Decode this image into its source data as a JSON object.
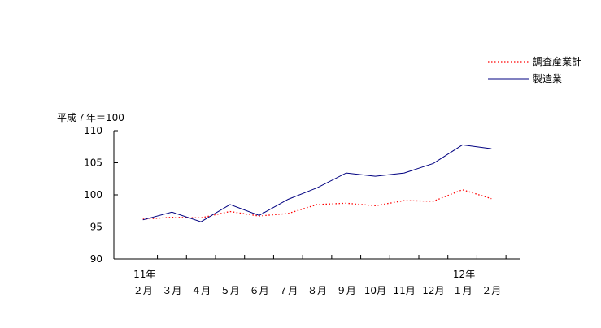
{
  "chart_data": {
    "type": "line",
    "unit_label": "平成７年＝100",
    "ylim": [
      90,
      110
    ],
    "yticks": [
      90,
      95,
      100,
      105,
      110
    ],
    "x_year_labels": [
      {
        "index": 0,
        "label": "11年"
      },
      {
        "index": 11,
        "label": "12年"
      }
    ],
    "categories": [
      "２月",
      "３月",
      "４月",
      "５月",
      "６月",
      "７月",
      "８月",
      "９月",
      "10月",
      "11月",
      "12月",
      "１月",
      "２月"
    ],
    "legend_position": "top-right",
    "grid": false,
    "series": [
      {
        "name": "調査産業計",
        "style": "dotted",
        "color": "#ff0000",
        "values": [
          96.2,
          96.5,
          96.4,
          97.4,
          96.7,
          97.1,
          98.5,
          98.7,
          98.3,
          99.1,
          99.0,
          100.8,
          99.4
        ]
      },
      {
        "name": "製造業",
        "style": "solid",
        "color": "#000080",
        "values": [
          96.1,
          97.3,
          95.8,
          98.5,
          96.8,
          99.3,
          101.1,
          103.4,
          102.9,
          103.4,
          104.9,
          107.8,
          107.2
        ]
      }
    ]
  }
}
